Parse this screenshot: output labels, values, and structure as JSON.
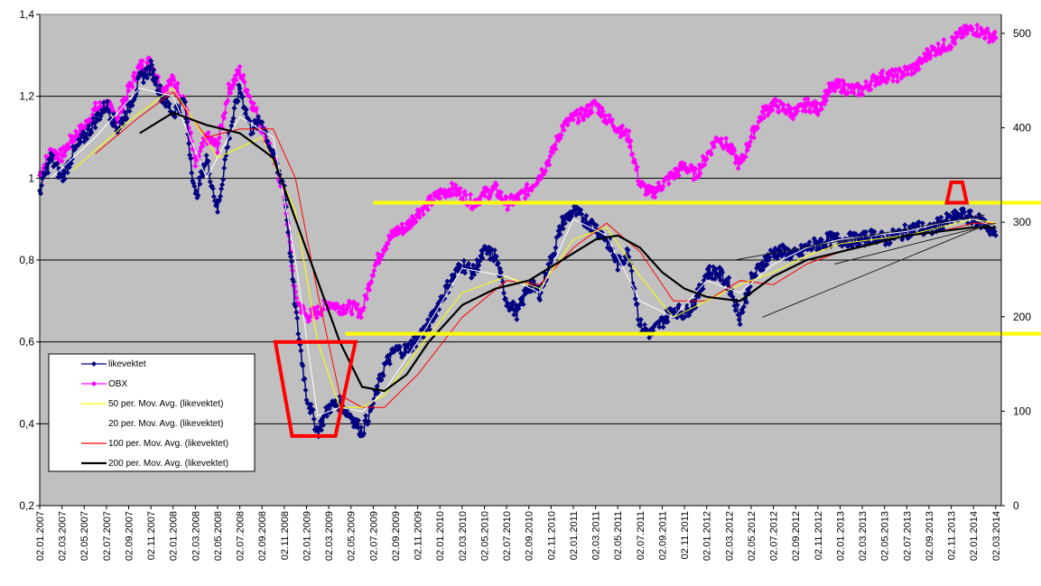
{
  "chart_data": {
    "type": "line",
    "title": "",
    "xlabel": "",
    "ylabel": "",
    "y_left": {
      "min": 0.2,
      "max": 1.4,
      "step": 0.2,
      "ticks": [
        "0,2",
        "0,4",
        "0,6",
        "0,8",
        "1",
        "1,2",
        "1,4"
      ]
    },
    "y_right": {
      "min": 0,
      "max": 520,
      "ticks": [
        "0",
        "100",
        "200",
        "300",
        "400",
        "500"
      ],
      "tick_values": [
        0,
        100,
        200,
        300,
        400,
        500
      ]
    },
    "x_range": [
      0,
      86.5
    ],
    "x_ticks": [
      "02.01.2007",
      "02.03.2007",
      "02.05.2007",
      "02.07.2007",
      "02.09.2007",
      "02.11.2007",
      "02.01.2008",
      "02.03.2008",
      "02.05.2008",
      "02.07.2008",
      "02.09.2008",
      "02.11.2008",
      "02.01.2009",
      "02.03.2009",
      "02.05.2009",
      "02.07.2009",
      "02.09.2009",
      "02.11.2009",
      "02.01.2010",
      "02.03.2010",
      "02.05.2010",
      "02.07.2010",
      "02.09.2010",
      "02.11.2010",
      "02.01.2011",
      "02.03.2011",
      "02.05.2011",
      "02.07.2011",
      "02.09.2011",
      "02.11.2011",
      "02.01.2012",
      "02.03.2012",
      "02.05.2012",
      "02.07.2012",
      "02.09.2012",
      "02.11.2012",
      "02.01.2013",
      "02.03.2013",
      "02.05.2013",
      "02.07.2013",
      "02.09.2013",
      "02.11.2013",
      "02.01.2014",
      "02.03.2014"
    ],
    "grid": "horizontal",
    "plot_background": "#c0c0c0",
    "legend_position": "lower-left",
    "series": [
      {
        "name": "likevektet",
        "axis": "left",
        "color": "#000080",
        "marker": "diamond",
        "x": [
          0,
          1,
          2,
          3,
          4,
          5,
          6,
          7,
          8,
          9,
          10,
          11,
          12,
          13,
          14,
          15,
          16,
          17,
          18,
          19,
          20,
          21,
          22,
          23,
          24,
          25,
          26,
          27,
          28,
          29,
          30,
          31,
          32,
          33,
          34,
          35,
          36,
          37,
          38,
          39,
          40,
          41,
          42,
          43,
          44,
          45,
          46,
          47,
          48,
          49,
          50,
          51,
          52,
          53,
          54,
          55,
          56,
          57,
          58,
          59,
          60,
          61,
          62,
          63,
          64,
          65,
          66,
          67,
          68,
          69,
          70,
          71,
          72,
          73,
          74,
          75,
          76,
          77,
          78,
          79,
          80,
          81,
          82,
          83,
          84,
          85,
          86
        ],
        "y": [
          0.97,
          1.05,
          1.0,
          1.06,
          1.1,
          1.14,
          1.18,
          1.12,
          1.17,
          1.24,
          1.27,
          1.2,
          1.16,
          1.19,
          0.95,
          1.05,
          0.92,
          1.1,
          1.22,
          1.12,
          1.14,
          1.05,
          0.98,
          0.68,
          0.47,
          0.38,
          0.44,
          0.45,
          0.42,
          0.38,
          0.45,
          0.54,
          0.58,
          0.58,
          0.61,
          0.64,
          0.7,
          0.75,
          0.79,
          0.77,
          0.82,
          0.81,
          0.7,
          0.67,
          0.74,
          0.72,
          0.8,
          0.89,
          0.92,
          0.9,
          0.88,
          0.85,
          0.79,
          0.82,
          0.64,
          0.62,
          0.65,
          0.68,
          0.67,
          0.7,
          0.77,
          0.77,
          0.74,
          0.66,
          0.75,
          0.79,
          0.82,
          0.82,
          0.81,
          0.83,
          0.84,
          0.85,
          0.85,
          0.85,
          0.85,
          0.86,
          0.85,
          0.86,
          0.87,
          0.88,
          0.87,
          0.89,
          0.9,
          0.91,
          0.9,
          0.89,
          0.86
        ]
      },
      {
        "name": "OBX",
        "axis": "right",
        "color": "#ff00ff",
        "marker": "diamond",
        "x": [
          0,
          1,
          2,
          3,
          4,
          5,
          6,
          7,
          8,
          9,
          10,
          11,
          12,
          13,
          14,
          15,
          16,
          17,
          18,
          19,
          20,
          21,
          22,
          23,
          24,
          25,
          26,
          27,
          28,
          29,
          30,
          31,
          32,
          33,
          34,
          35,
          36,
          37,
          38,
          39,
          40,
          41,
          42,
          43,
          44,
          45,
          46,
          47,
          48,
          49,
          50,
          51,
          52,
          53,
          54,
          55,
          56,
          57,
          58,
          59,
          60,
          61,
          62,
          63,
          64,
          65,
          66,
          67,
          68,
          69,
          70,
          71,
          72,
          73,
          74,
          75,
          76,
          77,
          78,
          79,
          80,
          81,
          82,
          83,
          84,
          85,
          86
        ],
        "y": [
          350,
          375,
          370,
          390,
          400,
          420,
          425,
          410,
          440,
          465,
          470,
          440,
          450,
          430,
          360,
          390,
          380,
          440,
          460,
          430,
          400,
          370,
          330,
          220,
          200,
          205,
          215,
          210,
          210,
          205,
          250,
          275,
          290,
          295,
          310,
          320,
          330,
          335,
          330,
          320,
          330,
          335,
          320,
          325,
          335,
          350,
          370,
          400,
          410,
          415,
          425,
          410,
          400,
          390,
          340,
          330,
          340,
          350,
          360,
          350,
          370,
          390,
          380,
          360,
          390,
          415,
          425,
          420,
          415,
          425,
          420,
          440,
          445,
          440,
          440,
          450,
          455,
          455,
          460,
          465,
          480,
          485,
          490,
          500,
          505,
          500,
          495
        ]
      },
      {
        "name": "50 per. Mov. Avg. (likevektet)",
        "axis": "left",
        "color": "#ffff00",
        "x": [
          3,
          8,
          12,
          16,
          20,
          23,
          25,
          27,
          29,
          31,
          34,
          38,
          42,
          45,
          48,
          51,
          54,
          57,
          60,
          63,
          66,
          69,
          72,
          75,
          78,
          81,
          84,
          86
        ],
        "y": [
          1.02,
          1.14,
          1.22,
          1.05,
          1.1,
          0.92,
          0.6,
          0.44,
          0.44,
          0.47,
          0.58,
          0.72,
          0.76,
          0.73,
          0.85,
          0.88,
          0.76,
          0.66,
          0.7,
          0.74,
          0.77,
          0.81,
          0.84,
          0.85,
          0.86,
          0.88,
          0.9,
          0.89
        ]
      },
      {
        "name": "20 per. Mov. Avg. (likevektet)",
        "axis": "left",
        "color": "#ffffff",
        "x": [
          1,
          5,
          9,
          12,
          15,
          18,
          21,
          23,
          25,
          27,
          29,
          31,
          34,
          38,
          42,
          45,
          48,
          51,
          54,
          57,
          60,
          63,
          66,
          69,
          72,
          75,
          78,
          81,
          84,
          86
        ],
        "y": [
          1.0,
          1.1,
          1.22,
          1.2,
          1.0,
          1.15,
          1.1,
          0.8,
          0.42,
          0.44,
          0.43,
          0.48,
          0.6,
          0.78,
          0.76,
          0.72,
          0.9,
          0.86,
          0.7,
          0.66,
          0.75,
          0.72,
          0.79,
          0.83,
          0.85,
          0.86,
          0.87,
          0.89,
          0.9,
          0.88
        ]
      },
      {
        "name": "100 per. Mov. Avg. (likevektet)",
        "axis": "left",
        "color": "#ff0000",
        "x": [
          5,
          9,
          12,
          15,
          18,
          21,
          23,
          25,
          27,
          29,
          31,
          34,
          38,
          42,
          45,
          48,
          51,
          54,
          57,
          60,
          63,
          66,
          69,
          72,
          75,
          78,
          81,
          84,
          86
        ],
        "y": [
          1.06,
          1.15,
          1.21,
          1.1,
          1.12,
          1.12,
          1.0,
          0.72,
          0.47,
          0.44,
          0.44,
          0.52,
          0.66,
          0.75,
          0.74,
          0.83,
          0.89,
          0.82,
          0.7,
          0.7,
          0.75,
          0.74,
          0.79,
          0.82,
          0.84,
          0.86,
          0.87,
          0.89,
          0.89
        ]
      },
      {
        "name": "200 per. Mov. Avg. (likevektet)",
        "axis": "left",
        "color": "#000000",
        "x": [
          9,
          12,
          15,
          18,
          21,
          23,
          25,
          27,
          29,
          31,
          33,
          35,
          38,
          41,
          44,
          47,
          50,
          52,
          54,
          56,
          58,
          60,
          63,
          66,
          69,
          72,
          75,
          78,
          81,
          84,
          86
        ],
        "y": [
          1.11,
          1.16,
          1.13,
          1.11,
          1.05,
          0.9,
          0.75,
          0.6,
          0.49,
          0.48,
          0.52,
          0.6,
          0.69,
          0.73,
          0.75,
          0.8,
          0.85,
          0.86,
          0.83,
          0.77,
          0.73,
          0.71,
          0.7,
          0.76,
          0.8,
          0.82,
          0.84,
          0.86,
          0.87,
          0.88,
          0.88
        ]
      }
    ],
    "annotations": {
      "hlines_left_axis": [
        {
          "y": 0.94,
          "x_from": 30,
          "x_to": 86.5,
          "color": "#ffff00"
        },
        {
          "y": 0.62,
          "x_from": 27.5,
          "x_to": 86.5,
          "color": "#ffff00"
        }
      ],
      "trend_lines_left_axis": [
        {
          "x": [
            62.5,
            85
          ],
          "y": [
            0.8,
            0.91
          ],
          "color": "#222222"
        },
        {
          "x": [
            65,
            85.5
          ],
          "y": [
            0.66,
            0.89
          ],
          "color": "#222222"
        },
        {
          "x": [
            71.5,
            86
          ],
          "y": [
            0.79,
            0.89
          ],
          "color": "#222222"
        }
      ],
      "trapezoids_left_axis": [
        {
          "points": [
            [
              21.2,
              0.6
            ],
            [
              28.4,
              0.6
            ],
            [
              26.6,
              0.37
            ],
            [
              22.7,
              0.37
            ]
          ],
          "color": "#ff0000"
        },
        {
          "points": [
            [
              81.6,
              0.94
            ],
            [
              83.4,
              0.94
            ],
            [
              83.0,
              0.99
            ],
            [
              82.0,
              0.99
            ]
          ],
          "color": "#ff0000"
        }
      ]
    }
  }
}
